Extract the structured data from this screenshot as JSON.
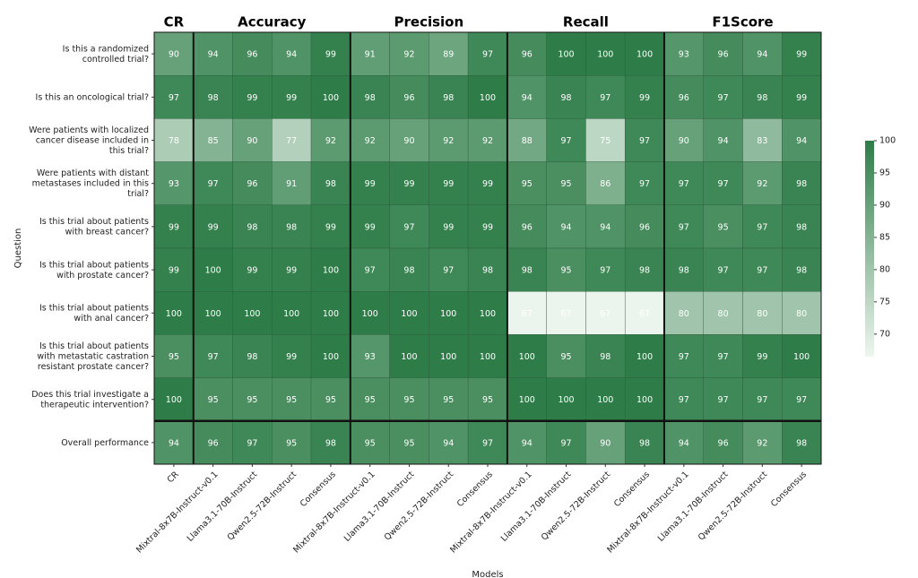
{
  "chart_data": {
    "type": "heatmap",
    "column_groups": [
      {
        "label": "CR",
        "size": 1
      },
      {
        "label": "Accuracy",
        "size": 4
      },
      {
        "label": "Precision",
        "size": 4
      },
      {
        "label": "Recall",
        "size": 4
      },
      {
        "label": "F1Score",
        "size": 4
      }
    ],
    "x": [
      "CR",
      "Mixtral-8x7B-Instruct-v0.1",
      "Llama3.1-70B-Instruct",
      "Qwen2.5-72B-Instruct",
      "Consensus",
      "Mixtral-8x7B-Instruct-v0.1",
      "Llama3.1-70B-Instruct",
      "Qwen2.5-72B-Instruct",
      "Consensus",
      "Mixtral-8x7B-Instruct-v0.1",
      "Llama3.1-70B-Instruct",
      "Qwen2.5-72B-Instruct",
      "Consensus",
      "Mixtral-8x7B-Instruct-v0.1",
      "Llama3.1-70B-Instruct",
      "Qwen2.5-72B-Instruct",
      "Consensus"
    ],
    "y": [
      "Is this a randomized controlled trial?",
      "Is this an oncological trial?",
      "Were patients with localized cancer disease included in this trial?",
      "Were patients with distant metastases included in this trial?",
      "Is this trial about patients with breast cancer?",
      "Is this trial about patients with prostate cancer?",
      "Is this trial about patients with anal cancer?",
      "Is this trial about patients with metastatic castration resistant prostate cancer?",
      "Does this trial investigate a therapeutic intervention?",
      "Overall performance"
    ],
    "values": [
      [
        90,
        94,
        96,
        94,
        99,
        91,
        92,
        89,
        97,
        96,
        100,
        100,
        100,
        93,
        96,
        94,
        99
      ],
      [
        97,
        98,
        99,
        99,
        100,
        98,
        96,
        98,
        100,
        94,
        98,
        97,
        99,
        96,
        97,
        98,
        99
      ],
      [
        78,
        85,
        90,
        77,
        92,
        92,
        90,
        92,
        92,
        88,
        97,
        75,
        97,
        90,
        94,
        83,
        94
      ],
      [
        93,
        97,
        96,
        91,
        98,
        99,
        99,
        99,
        99,
        95,
        95,
        86,
        97,
        97,
        97,
        92,
        98
      ],
      [
        99,
        99,
        98,
        98,
        99,
        99,
        97,
        99,
        99,
        96,
        94,
        94,
        96,
        97,
        95,
        97,
        98
      ],
      [
        99,
        100,
        99,
        99,
        100,
        97,
        98,
        97,
        98,
        98,
        95,
        97,
        98,
        98,
        97,
        97,
        98
      ],
      [
        100,
        100,
        100,
        100,
        100,
        100,
        100,
        100,
        100,
        67,
        67,
        67,
        67,
        80,
        80,
        80,
        80
      ],
      [
        95,
        97,
        98,
        99,
        100,
        93,
        100,
        100,
        100,
        100,
        95,
        98,
        100,
        97,
        97,
        99,
        100
      ],
      [
        100,
        95,
        95,
        95,
        95,
        95,
        95,
        95,
        95,
        100,
        100,
        100,
        100,
        97,
        97,
        97,
        97
      ],
      [
        94,
        96,
        97,
        95,
        98,
        95,
        95,
        94,
        97,
        94,
        97,
        90,
        98,
        94,
        96,
        92,
        98
      ]
    ],
    "xlabel": "Models",
    "ylabel": "Question",
    "zlim": [
      66.5,
      100
    ],
    "zticks": [
      70,
      75,
      80,
      85,
      90,
      95,
      100
    ],
    "colormap": [
      "#eef6ef",
      "#2e7d48"
    ]
  }
}
